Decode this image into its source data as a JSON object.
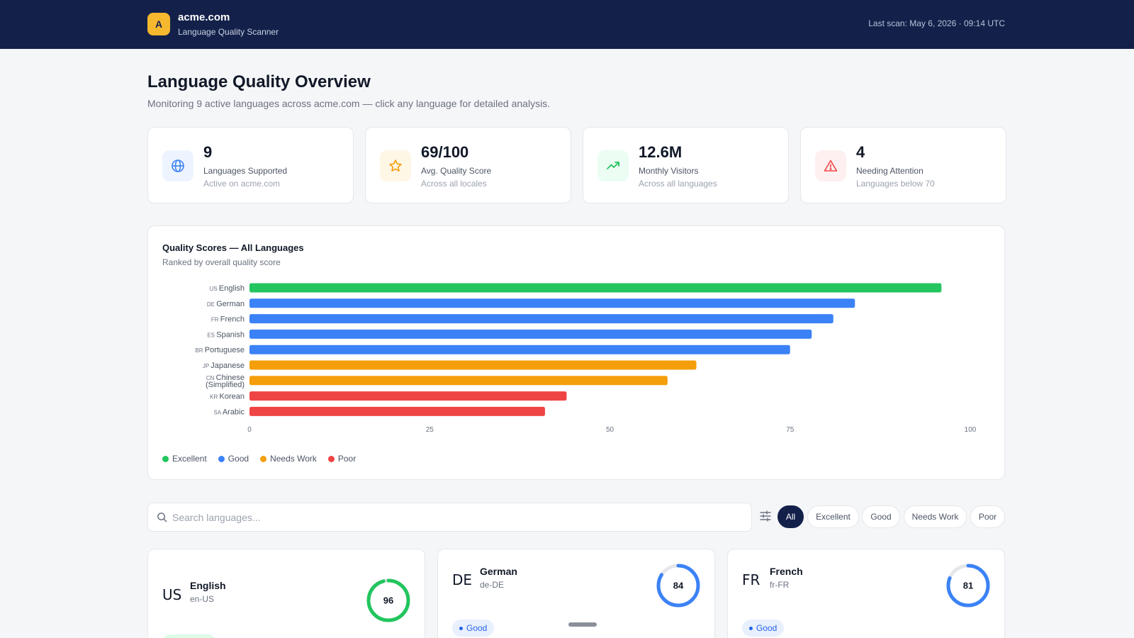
{
  "header": {
    "logo_letter": "A",
    "brand": "acme.com",
    "subtitle": "Language Quality Scanner",
    "last_scan": "Last scan: May 6, 2026 · 09:14 UTC"
  },
  "page": {
    "title": "Language Quality Overview",
    "subtitle": "Monitoring 9 active languages across acme.com — click any language for detailed analysis."
  },
  "stats": [
    {
      "value": "9",
      "label": "Languages Supported",
      "note": "Active on acme.com",
      "icon": "globe-icon",
      "color": "#3b82f6",
      "bg": "#eef4ff"
    },
    {
      "value": "69/100",
      "label": "Avg. Quality Score",
      "note": "Across all locales",
      "icon": "star-icon",
      "color": "#f59e0b",
      "bg": "#fff7e6"
    },
    {
      "value": "12.6M",
      "label": "Monthly Visitors",
      "note": "Across all languages",
      "icon": "trending-up-icon",
      "color": "#22c55e",
      "bg": "#ecfdf3"
    },
    {
      "value": "4",
      "label": "Needing Attention",
      "note": "Languages below 70",
      "icon": "warning-icon",
      "color": "#ef4444",
      "bg": "#fef0f0"
    }
  ],
  "chart": {
    "title": "Quality Scores — All Languages",
    "subtitle": "Ranked by overall quality score"
  },
  "chart_data": {
    "type": "bar",
    "orientation": "horizontal",
    "categories": [
      {
        "code": "US",
        "name": "English"
      },
      {
        "code": "DE",
        "name": "German"
      },
      {
        "code": "FR",
        "name": "French"
      },
      {
        "code": "ES",
        "name": "Spanish"
      },
      {
        "code": "BR",
        "name": "Portuguese"
      },
      {
        "code": "JP",
        "name": "Japanese"
      },
      {
        "code": "CN",
        "name": "Chinese (Simplified)"
      },
      {
        "code": "KR",
        "name": "Korean"
      },
      {
        "code": "SA",
        "name": "Arabic"
      }
    ],
    "values": [
      96,
      84,
      81,
      78,
      75,
      62,
      58,
      44,
      41
    ],
    "tiers": [
      "Excellent",
      "Good",
      "Good",
      "Good",
      "Good",
      "Needs Work",
      "Needs Work",
      "Poor",
      "Poor"
    ],
    "xlim": [
      0,
      100
    ],
    "xticks": [
      "0",
      "25",
      "50",
      "75",
      "100"
    ],
    "legend": [
      {
        "name": "Excellent",
        "color": "#22c55e"
      },
      {
        "name": "Good",
        "color": "#3b82f6"
      },
      {
        "name": "Needs Work",
        "color": "#f59e0b"
      },
      {
        "name": "Poor",
        "color": "#ef4444"
      }
    ],
    "legend_position": "bottom-left"
  },
  "search": {
    "placeholder": "Search languages...",
    "value": ""
  },
  "filters": [
    "All",
    "Excellent",
    "Good",
    "Needs Work",
    "Poor"
  ],
  "active_filter": "All",
  "cards": [
    {
      "code": "US",
      "name": "English",
      "locale": "en-US",
      "score": "96",
      "score_value": 96,
      "tier": "Excellent",
      "ring_color": "#22c55e"
    },
    {
      "code": "DE",
      "name": "German",
      "locale": "de-DE",
      "score": "84",
      "score_value": 84,
      "tier": "Good",
      "ring_color": "#3b82f6"
    },
    {
      "code": "FR",
      "name": "French",
      "locale": "fr-FR",
      "score": "81",
      "score_value": 81,
      "tier": "Good",
      "ring_color": "#3b82f6"
    }
  ]
}
